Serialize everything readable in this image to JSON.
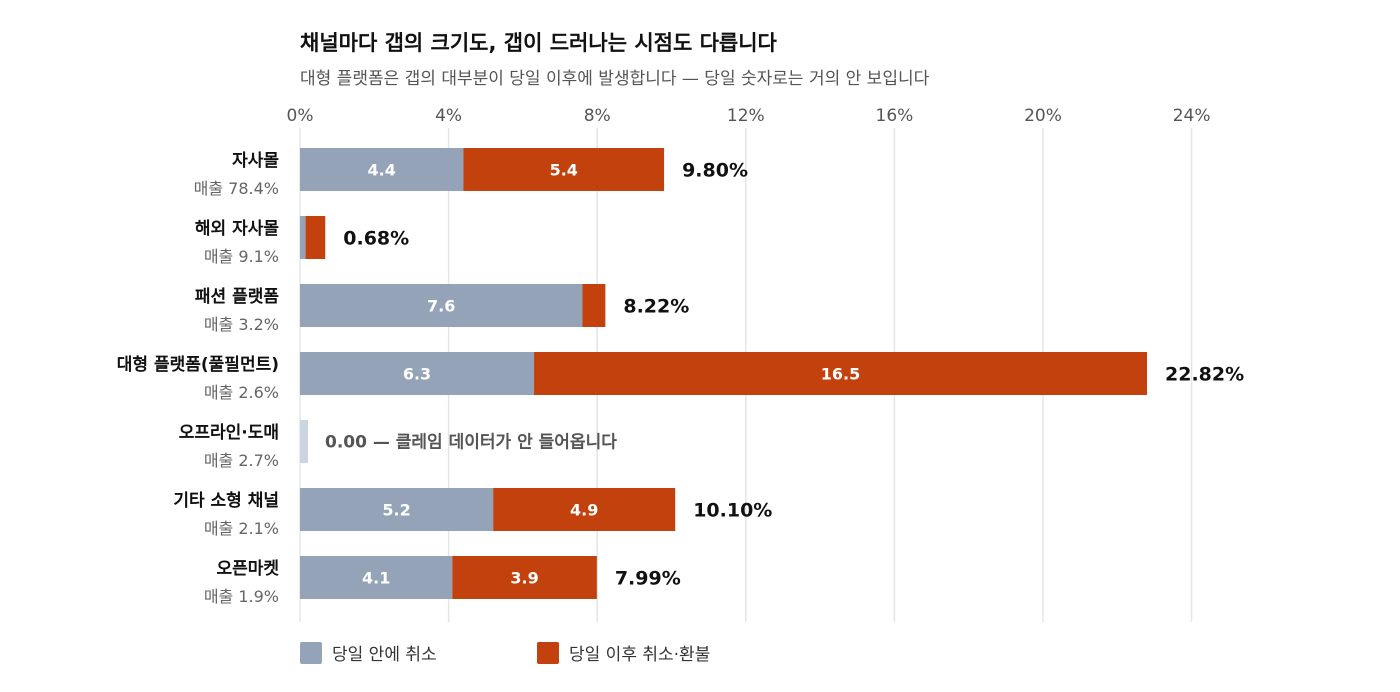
{
  "chart_data": {
    "type": "bar",
    "orientation": "horizontal",
    "stacked": true,
    "title": "채널마다 갭의 크기도, 갭이 드러나는 시점도 다릅니다",
    "subtitle": "대형 플랫폼은 갭의 대부분이 당일 이후에 발생합니다 — 당일 숫자로는 거의 안 보입니다",
    "xlim": [
      0,
      24
    ],
    "xticks": [
      0,
      4,
      8,
      12,
      16,
      20,
      24
    ],
    "xtick_labels": [
      "0%",
      "4%",
      "8%",
      "12%",
      "16%",
      "20%",
      "24%"
    ],
    "grid": true,
    "legend_position": "bottom-left",
    "categories": [
      "자사몰",
      "해외 자사몰",
      "패션 플랫폼",
      "대형 플랫폼(풀필먼트)",
      "오프라인·도매",
      "기타 소형 채널",
      "오픈마켓"
    ],
    "category_sublabels": [
      "매출 78.4%",
      "매출 9.1%",
      "매출 3.2%",
      "매출 2.6%",
      "매출 2.7%",
      "매출 2.1%",
      "매출 1.9%"
    ],
    "series": [
      {
        "name": "당일 안에 취소",
        "color": "#94a3b8",
        "values": [
          4.4,
          0.15,
          7.6,
          6.3,
          0,
          5.2,
          4.1
        ],
        "labels": [
          "4.4",
          "",
          "7.6",
          "6.3",
          "",
          "5.2",
          "4.1"
        ]
      },
      {
        "name": "당일 이후 취소·환불",
        "color": "#c2410c",
        "values": [
          5.4,
          0.53,
          0.62,
          16.5,
          0,
          4.9,
          3.89
        ],
        "labels": [
          "5.4",
          "",
          "",
          "16.5",
          "",
          "4.9",
          "3.9"
        ]
      }
    ],
    "totals": [
      "9.80%",
      "0.68%",
      "8.22%",
      "22.82%",
      "",
      "10.10%",
      "7.99%"
    ],
    "annotations": [
      {
        "category_index": 4,
        "text": "0.00 — 클레임 데이터가 안 들어옵니다",
        "placeholder_color": "#cbd5e1"
      }
    ]
  }
}
